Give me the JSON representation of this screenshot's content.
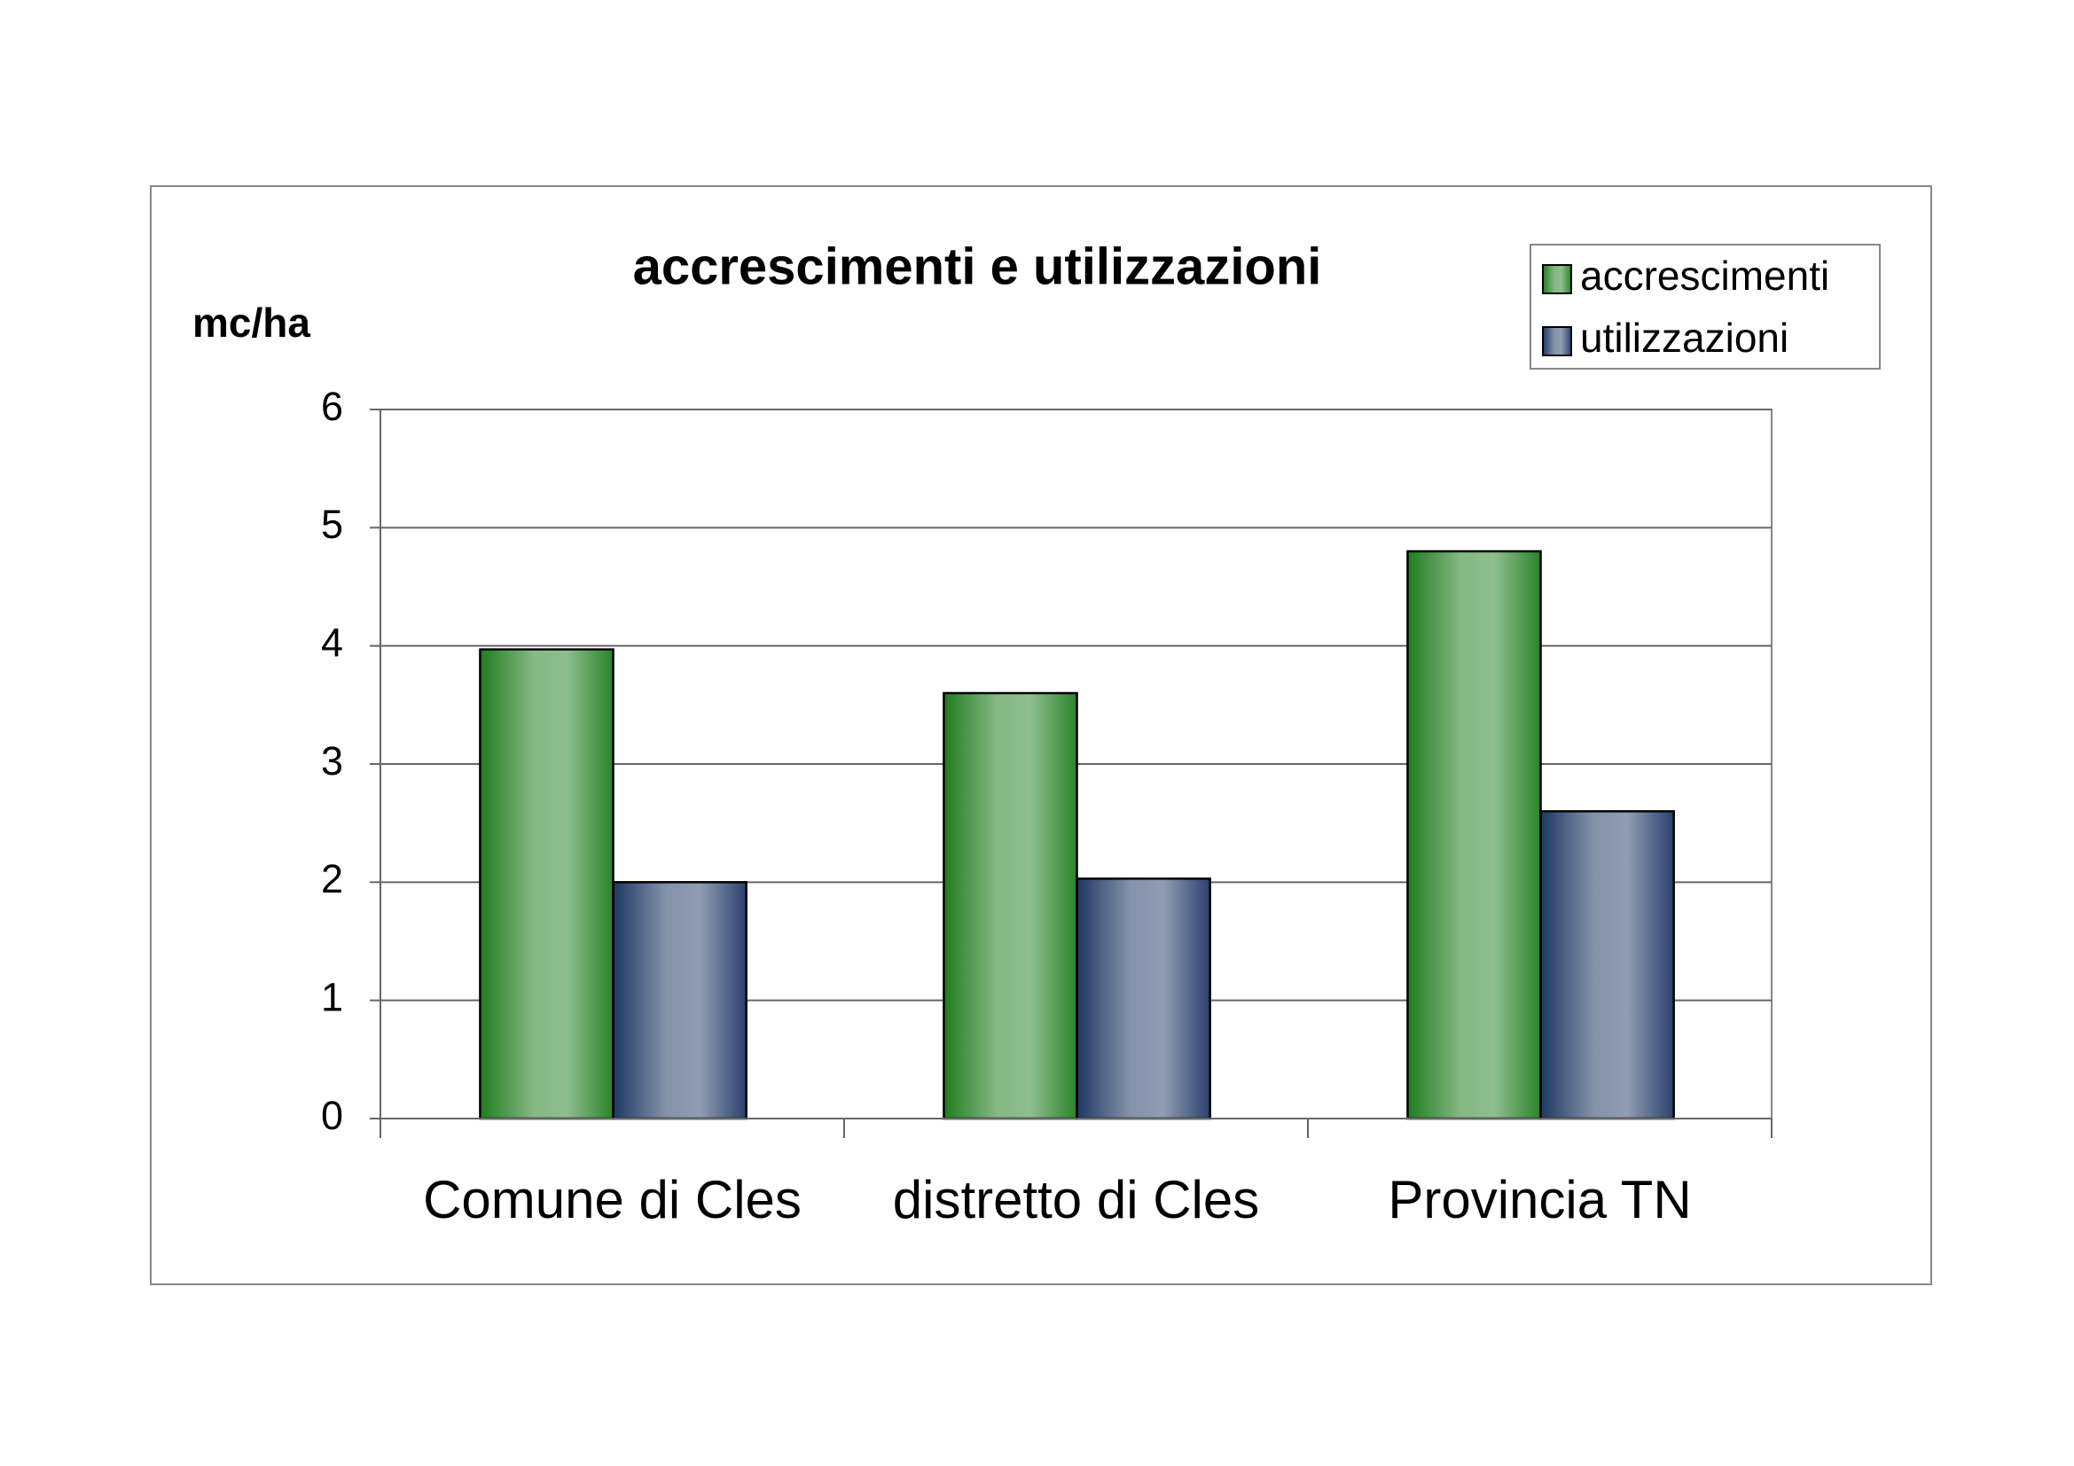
{
  "chart_data": {
    "type": "bar",
    "title": "accrescimenti e utilizzazioni",
    "y_label": "mc/ha",
    "categories": [
      "Comune di Cles",
      "distretto di Cles",
      "Provincia TN"
    ],
    "series": [
      {
        "name": "accrescimenti",
        "color": "#1f7d1f",
        "values": [
          3.97,
          3.6,
          4.8
        ]
      },
      {
        "name": "utilizzazioni",
        "color": "#1f3864",
        "values": [
          2.0,
          2.03,
          2.6
        ]
      }
    ],
    "ylim": [
      0,
      6
    ],
    "yticks": [
      0,
      1,
      2,
      3,
      4,
      5,
      6
    ],
    "grid": true,
    "legend": "top-right"
  }
}
